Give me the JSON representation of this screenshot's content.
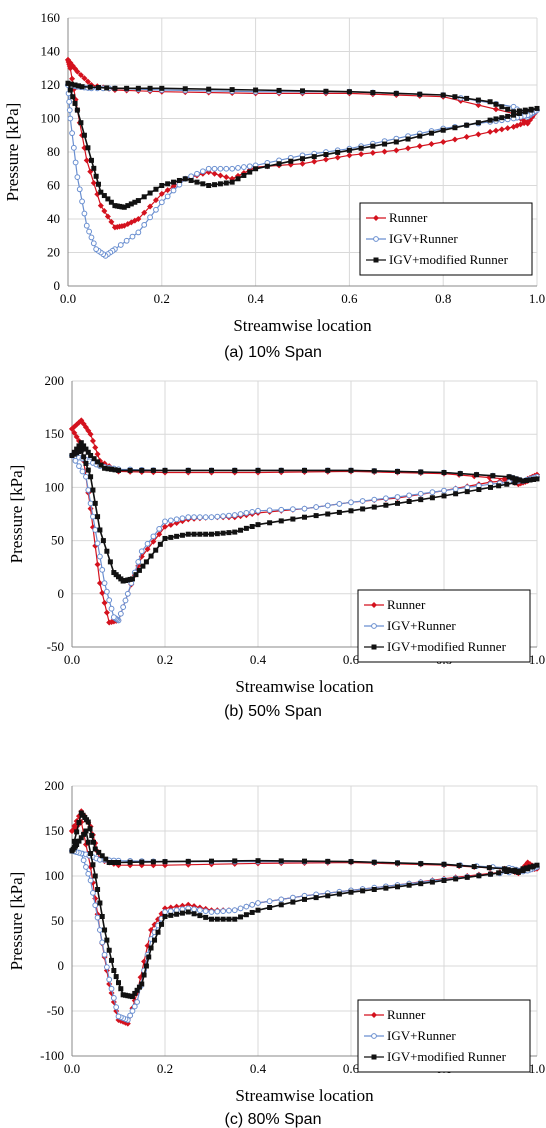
{
  "colors": {
    "runner": "#d4121e",
    "igv_runner": "#6a8fd0",
    "igv_modified": "#111111",
    "grid": "#d9d9d9",
    "axis": "#888888"
  },
  "chart_data": [
    {
      "type": "line",
      "caption": "(a) 10% Span",
      "xlabel": "Streamwise location",
      "ylabel": "Pressure [kPa]",
      "xlim": [
        0,
        1
      ],
      "ylim": [
        0,
        160
      ],
      "xticks": [
        "0.0",
        "0.2",
        "0.4",
        "0.6",
        "0.8",
        "1.0"
      ],
      "yticks": [
        "0",
        "20",
        "40",
        "60",
        "80",
        "100",
        "120",
        "140",
        "160"
      ],
      "grid": true,
      "legend_position": "bottom-right",
      "series": [
        {
          "name": "Runner",
          "color": "#d4121e",
          "marker": "filled-diamond",
          "x": [
            0.0,
            0.02,
            0.05,
            0.1,
            0.2,
            0.4,
            0.6,
            0.8,
            0.95,
            0.98,
            1.0,
            0.98,
            0.95,
            0.9,
            0.8,
            0.7,
            0.6,
            0.5,
            0.4,
            0.35,
            0.3,
            0.25,
            0.2,
            0.15,
            0.12,
            0.1,
            0.07,
            0.04,
            0.02,
            0.005,
            0.0
          ],
          "y": [
            135,
            128,
            120,
            117,
            116,
            115,
            115,
            113,
            103,
            97,
            105,
            98,
            95,
            92,
            86,
            81,
            78,
            73,
            71,
            64,
            68,
            64,
            55,
            40,
            36,
            35,
            48,
            75,
            105,
            130,
            135
          ]
        },
        {
          "name": "IGV+Runner",
          "color": "#6a8fd0",
          "marker": "open-circle",
          "x": [
            0.0,
            0.02,
            0.05,
            0.1,
            0.2,
            0.4,
            0.6,
            0.8,
            0.95,
            0.98,
            1.0,
            0.98,
            0.95,
            0.9,
            0.8,
            0.7,
            0.6,
            0.5,
            0.4,
            0.35,
            0.3,
            0.25,
            0.2,
            0.15,
            0.1,
            0.08,
            0.06,
            0.04,
            0.02,
            0.005,
            0.0
          ],
          "y": [
            120,
            119,
            118,
            118,
            117,
            116,
            116,
            114,
            107,
            101,
            105,
            102,
            100,
            98,
            94,
            88,
            82,
            78,
            72,
            70,
            70,
            64,
            50,
            32,
            22,
            18,
            22,
            36,
            65,
            100,
            120
          ]
        },
        {
          "name": "IGV+modified Runner",
          "color": "#111111",
          "marker": "filled-square",
          "x": [
            0.0,
            0.03,
            0.1,
            0.2,
            0.4,
            0.6,
            0.8,
            0.9,
            0.95,
            1.0,
            0.95,
            0.9,
            0.8,
            0.7,
            0.6,
            0.5,
            0.4,
            0.35,
            0.3,
            0.25,
            0.2,
            0.15,
            0.12,
            0.1,
            0.07,
            0.05,
            0.02,
            0.0
          ],
          "y": [
            121,
            119,
            118,
            118,
            117,
            116,
            114,
            110,
            104,
            106,
            102,
            99,
            93,
            86,
            81,
            76,
            70,
            62,
            60,
            64,
            60,
            51,
            47,
            48,
            56,
            75,
            105,
            121
          ]
        }
      ],
      "legend": [
        "Runner",
        "IGV+Runner",
        "IGV+modified Runner"
      ]
    },
    {
      "type": "line",
      "caption": "(b) 50% Span",
      "xlabel": "Streamwise location",
      "ylabel": "Pressure [kPa]",
      "xlim": [
        0,
        1
      ],
      "ylim": [
        -50,
        200
      ],
      "xticks": [
        "0.0",
        "0.2",
        "0.4",
        "0.6",
        "0.8",
        "1.0"
      ],
      "yticks": [
        "-50",
        "0",
        "50",
        "100",
        "150",
        "200"
      ],
      "grid": true,
      "legend_position": "bottom-right",
      "series": [
        {
          "name": "Runner",
          "color": "#d4121e",
          "marker": "filled-diamond",
          "x": [
            0.0,
            0.02,
            0.04,
            0.06,
            0.1,
            0.2,
            0.4,
            0.6,
            0.8,
            0.93,
            0.96,
            0.98,
            1.0,
            0.98,
            0.9,
            0.8,
            0.7,
            0.6,
            0.5,
            0.4,
            0.35,
            0.3,
            0.25,
            0.2,
            0.15,
            0.12,
            0.1,
            0.08,
            0.06,
            0.04,
            0.02,
            0.0
          ],
          "y": [
            155,
            163,
            150,
            125,
            115,
            114,
            114,
            115,
            113,
            108,
            103,
            106,
            112,
            108,
            105,
            97,
            90,
            86,
            80,
            76,
            72,
            72,
            70,
            63,
            35,
            0,
            -25,
            -27,
            10,
            80,
            140,
            155
          ]
        },
        {
          "name": "IGV+Runner",
          "color": "#6a8fd0",
          "marker": "open-circle",
          "x": [
            0.0,
            0.03,
            0.06,
            0.1,
            0.2,
            0.4,
            0.6,
            0.8,
            0.94,
            0.97,
            1.0,
            0.98,
            0.9,
            0.8,
            0.7,
            0.6,
            0.5,
            0.4,
            0.35,
            0.3,
            0.25,
            0.2,
            0.15,
            0.12,
            0.1,
            0.09,
            0.07,
            0.05,
            0.03,
            0.0
          ],
          "y": [
            130,
            126,
            120,
            117,
            116,
            116,
            116,
            114,
            110,
            106,
            110,
            107,
            103,
            97,
            91,
            86,
            80,
            78,
            74,
            72,
            72,
            68,
            40,
            0,
            -25,
            -22,
            10,
            60,
            110,
            130
          ]
        },
        {
          "name": "IGV+modified Runner",
          "color": "#111111",
          "marker": "filled-square",
          "x": [
            0.0,
            0.02,
            0.04,
            0.07,
            0.1,
            0.2,
            0.4,
            0.6,
            0.8,
            0.94,
            0.97,
            1.0,
            0.97,
            0.9,
            0.8,
            0.7,
            0.6,
            0.5,
            0.4,
            0.35,
            0.3,
            0.25,
            0.2,
            0.16,
            0.13,
            0.11,
            0.09,
            0.06,
            0.04,
            0.02,
            0.0
          ],
          "y": [
            130,
            142,
            130,
            118,
            116,
            116,
            116,
            116,
            114,
            110,
            106,
            108,
            106,
            100,
            92,
            85,
            78,
            72,
            65,
            58,
            56,
            56,
            52,
            30,
            14,
            12,
            20,
            60,
            110,
            135,
            130
          ]
        }
      ],
      "legend": [
        "Runner",
        "IGV+Runner",
        "IGV+modified Runner"
      ]
    },
    {
      "type": "line",
      "caption": "(c) 80% Span",
      "xlabel": "Streamwise location",
      "ylabel": "Pressure [kPa]",
      "xlim": [
        0,
        1
      ],
      "ylim": [
        -100,
        200
      ],
      "xticks": [
        "0.0",
        "0.2",
        "0.4",
        "0.6",
        "0.8",
        "1.0"
      ],
      "yticks": [
        "-100",
        "-50",
        "0",
        "50",
        "100",
        "150",
        "200"
      ],
      "grid": true,
      "legend_position": "bottom-right",
      "series": [
        {
          "name": "Runner",
          "color": "#d4121e",
          "marker": "filled-diamond",
          "x": [
            0.0,
            0.02,
            0.04,
            0.06,
            0.1,
            0.2,
            0.4,
            0.6,
            0.8,
            0.93,
            0.96,
            0.98,
            1.0,
            0.98,
            0.9,
            0.8,
            0.7,
            0.6,
            0.5,
            0.4,
            0.35,
            0.3,
            0.25,
            0.2,
            0.17,
            0.14,
            0.12,
            0.1,
            0.08,
            0.06,
            0.04,
            0.02,
            0.0
          ],
          "y": [
            150,
            172,
            155,
            118,
            112,
            112,
            114,
            115,
            112,
            108,
            103,
            115,
            108,
            107,
            103,
            97,
            90,
            84,
            78,
            70,
            62,
            62,
            68,
            64,
            40,
            -30,
            -64,
            -60,
            -20,
            40,
            110,
            160,
            150
          ]
        },
        {
          "name": "IGV+Runner",
          "color": "#6a8fd0",
          "marker": "open-circle",
          "x": [
            0.0,
            0.03,
            0.06,
            0.1,
            0.2,
            0.4,
            0.6,
            0.8,
            0.94,
            0.97,
            1.0,
            0.98,
            0.9,
            0.8,
            0.7,
            0.6,
            0.5,
            0.4,
            0.35,
            0.3,
            0.25,
            0.2,
            0.17,
            0.14,
            0.12,
            0.1,
            0.08,
            0.06,
            0.04,
            0.02,
            0.0
          ],
          "y": [
            128,
            124,
            118,
            117,
            116,
            116,
            116,
            113,
            109,
            105,
            110,
            106,
            102,
            96,
            90,
            84,
            78,
            70,
            62,
            60,
            64,
            60,
            30,
            -40,
            -60,
            -56,
            -15,
            40,
            95,
            125,
            128
          ]
        },
        {
          "name": "IGV+modified Runner",
          "color": "#111111",
          "marker": "filled-square",
          "x": [
            0.0,
            0.02,
            0.035,
            0.05,
            0.08,
            0.1,
            0.2,
            0.4,
            0.6,
            0.8,
            0.93,
            0.96,
            1.0,
            0.97,
            0.9,
            0.8,
            0.7,
            0.6,
            0.5,
            0.4,
            0.35,
            0.3,
            0.25,
            0.2,
            0.17,
            0.15,
            0.13,
            0.11,
            0.09,
            0.07,
            0.05,
            0.03,
            0.01,
            0.0
          ],
          "y": [
            128,
            170,
            160,
            130,
            115,
            115,
            116,
            117,
            116,
            113,
            108,
            104,
            112,
            108,
            102,
            95,
            88,
            82,
            74,
            62,
            52,
            52,
            60,
            55,
            20,
            -20,
            -34,
            -32,
            -5,
            40,
            100,
            150,
            135,
            128
          ]
        }
      ],
      "legend": [
        "Runner",
        "IGV+Runner",
        "IGV+modified Runner"
      ]
    }
  ]
}
